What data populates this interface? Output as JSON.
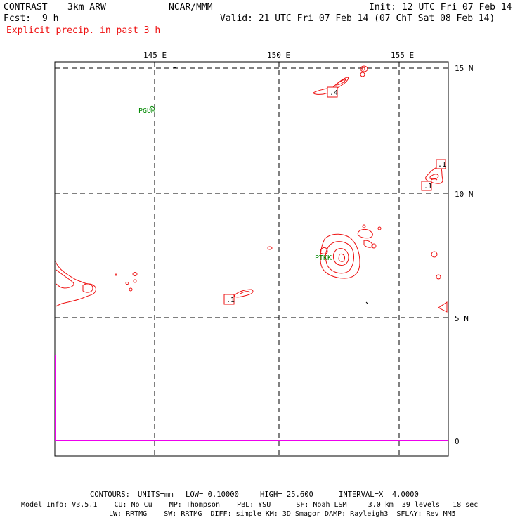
{
  "header": {
    "model_name": "CONTRAST",
    "model_res": "3km ARW",
    "org": "NCAR/MMM",
    "init": "Init: 12 UTC Fri 07 Feb 14",
    "fcst_label": "Fcst:",
    "fcst_value": "9 h",
    "valid": "Valid: 21 UTC Fri 07 Feb 14 (07 ChT Sat 08 Feb 14)",
    "field": "Explicit precip. in past 3 h"
  },
  "map": {
    "lon_labels": [
      "145 E",
      "150 E",
      "155 E"
    ],
    "lat_labels": [
      "15 N",
      "10 N",
      "5 N",
      "0"
    ],
    "stations": [
      "PGUM",
      "PTKK"
    ],
    "contour_labels": [
      ".4",
      ".1",
      ".1",
      ".1"
    ],
    "colors": {
      "precip": "#ee1111",
      "station": "#008800",
      "equator": "#ee00ee",
      "grid": "#000000"
    }
  },
  "footer": {
    "contours_label": "CONTOURS:",
    "units": "UNITS=mm",
    "low": "LOW= 0.10000",
    "high": "HIGH= 25.600",
    "interval": "INTERVAL=X  4.0000",
    "line1": "Model Info: V3.5.1    CU: No Cu    MP: Thompson    PBL: YSU      SF: Noah LSM     3.0 km  39 levels   18 sec",
    "line2": "LW: RRTMG    SW: RRTMG  DIFF: simple KM: 3D Smagor DAMP: Rayleigh3  SFLAY: Rev MM5"
  }
}
